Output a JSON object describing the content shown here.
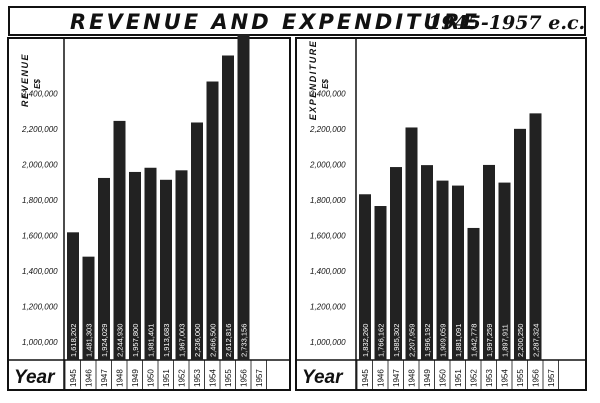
{
  "title": "REVENUE AND EXPENDITURE",
  "title_years": "1945-1957 e.c.",
  "year_label": "Year",
  "colors": {
    "bar": "#222222",
    "ink": "#111111",
    "paper": "#ffffff"
  },
  "chart_data": [
    {
      "type": "bar",
      "ylabel_main": "REVENUE",
      "ylabel_unit": "E$",
      "ylim": [
        900000,
        2700000
      ],
      "yticks": [
        "2,400,000",
        "2,200,000",
        "2,000,000",
        "1,800,000",
        "1,600,000",
        "1,400,000",
        "1,200,000",
        "1,000,000"
      ],
      "ytick_values": [
        2400000,
        2200000,
        2000000,
        1800000,
        1600000,
        1400000,
        1200000,
        1000000
      ],
      "categories": [
        "1945",
        "1946",
        "1947",
        "1948",
        "1949",
        "1950",
        "1951",
        "1952",
        "1953",
        "1954",
        "1955",
        "1956",
        "1957"
      ],
      "values": [
        1618202,
        1481303,
        1924029,
        2244930,
        1957800,
        1981401,
        1913683,
        1967003,
        2236000,
        2466500,
        2612816,
        2733156,
        null
      ],
      "data_labels": [
        "1,618,202",
        "1,481,303",
        "1,924,029",
        "2,244,930",
        "1,957,800",
        "1,981,401",
        "1,913,683",
        "1,967,003",
        "2,236,000",
        "2,466,500",
        "2,612,816",
        "2,733,156",
        ""
      ]
    },
    {
      "type": "bar",
      "ylabel_main": "EXPENDITURE",
      "ylabel_unit": "E$",
      "ylim": [
        900000,
        2700000
      ],
      "yticks": [
        "2,400,000",
        "2,200,000",
        "2,000,000",
        "1,800,000",
        "1,600,000",
        "1,400,000",
        "1,200,000",
        "1,000,000"
      ],
      "ytick_values": [
        2400000,
        2200000,
        2000000,
        1800000,
        1600000,
        1400000,
        1200000,
        1000000
      ],
      "categories": [
        "1945",
        "1946",
        "1947",
        "1948",
        "1949",
        "1950",
        "1951",
        "1952",
        "1953",
        "1954",
        "1955",
        "1956",
        "1957"
      ],
      "values": [
        1832260,
        1766162,
        1985302,
        2207959,
        1996192,
        1909059,
        1881091,
        1642778,
        1997259,
        1897911,
        2200250,
        2287324,
        null
      ],
      "data_labels": [
        "1,832,260",
        "1,766,162",
        "1,985,302",
        "2,207,959",
        "1,996,192",
        "1,909,059",
        "1,881,091",
        "1,642,778",
        "1,997,259",
        "1,897,911",
        "2,200,250",
        "2,287,324",
        ""
      ]
    }
  ]
}
